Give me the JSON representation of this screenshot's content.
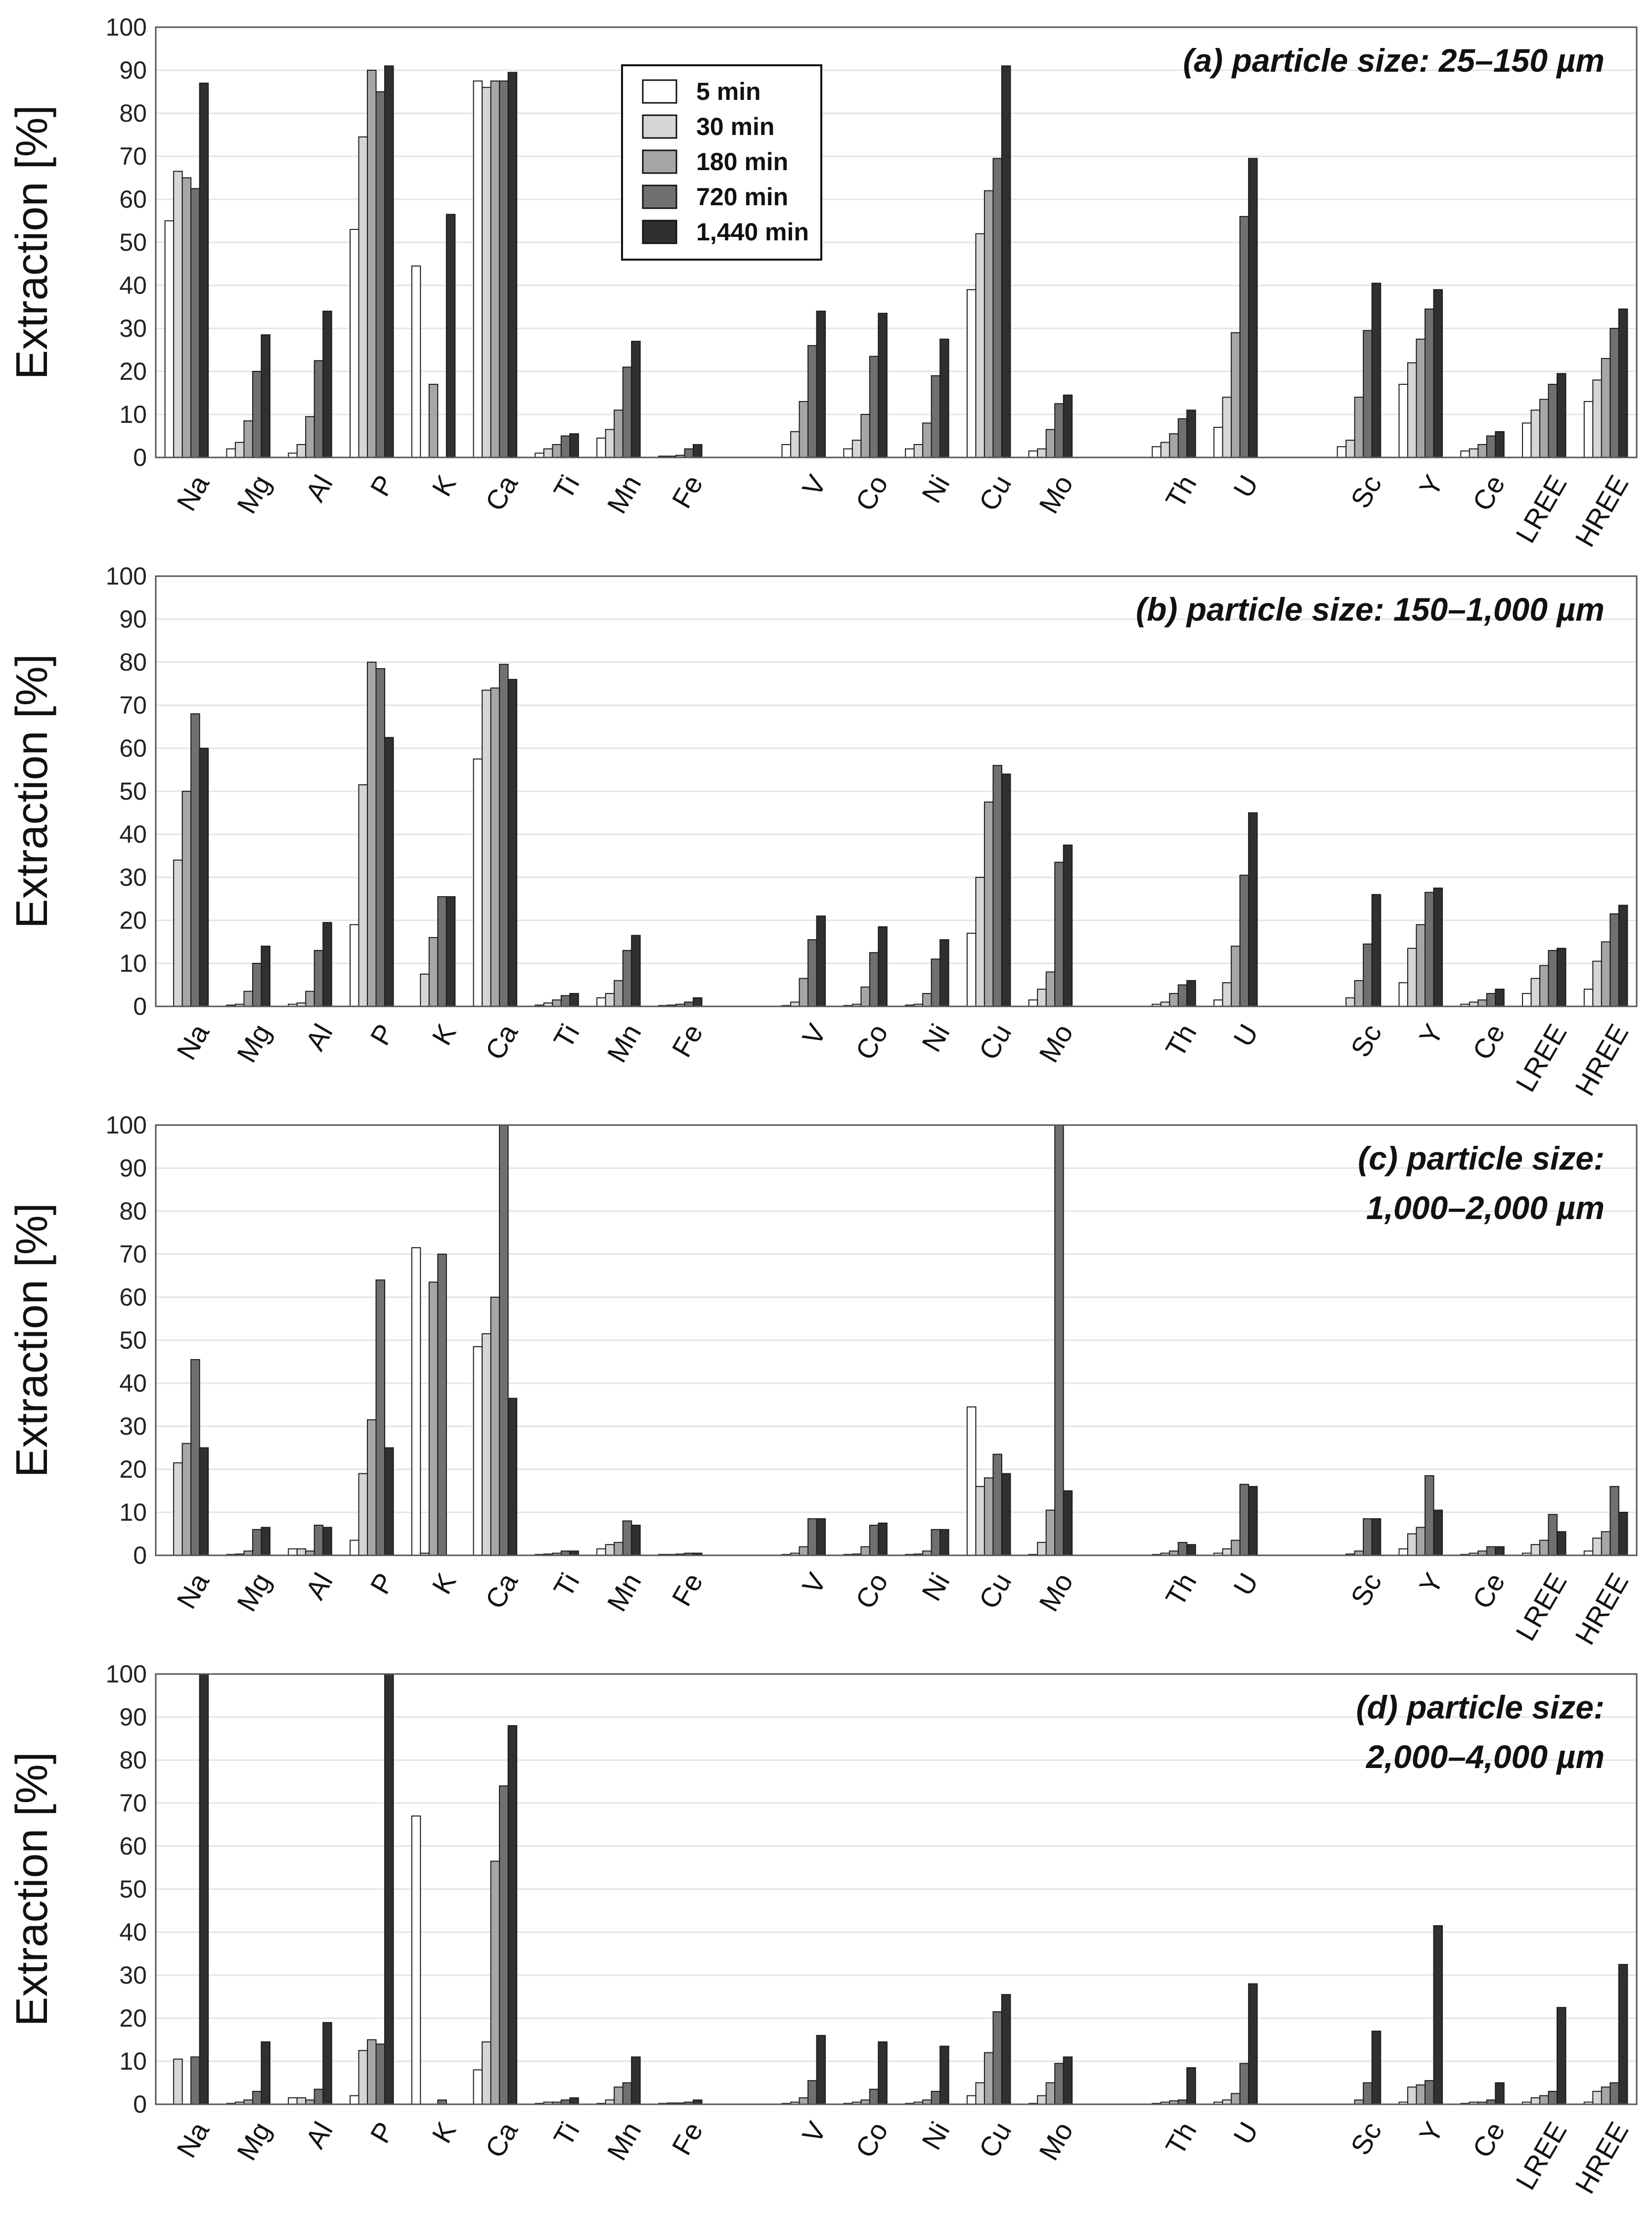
{
  "colors": [
    "#ffffff",
    "#d6d6d6",
    "#a6a6a6",
    "#707070",
    "#303030"
  ],
  "chart_data": {
    "type": "bar",
    "ylabel": "Extraction [%]",
    "ylim": [
      0,
      100
    ],
    "yticks": [
      0,
      10,
      20,
      30,
      40,
      50,
      60,
      70,
      80,
      90,
      100
    ],
    "categories": [
      "Na",
      "Mg",
      "Al",
      "P",
      "K",
      "Ca",
      "Ti",
      "Mn",
      "Fe",
      "",
      "V",
      "Co",
      "Ni",
      "Cu",
      "Mo",
      "",
      "Th",
      "U",
      "",
      "Sc",
      "Y",
      "Ce",
      "LREE",
      "HREE"
    ],
    "legend": [
      "5 min",
      "30 min",
      "180 min",
      "720 min",
      "1,440 min"
    ],
    "panels": [
      {
        "title_lines": [
          "(a) particle size: 25–150 µm"
        ],
        "series": [
          {
            "name": "5 min",
            "values": [
              55,
              2,
              1,
              53,
              44.5,
              87.5,
              1,
              4.5,
              0.3,
              null,
              3,
              2,
              2,
              39,
              1.5,
              null,
              2.5,
              7,
              null,
              2.5,
              17,
              1.5,
              8,
              13
            ]
          },
          {
            "name": "30 min",
            "values": [
              66.5,
              3.5,
              3,
              74.5,
              null,
              86,
              2,
              6.5,
              0.3,
              null,
              6,
              4,
              3,
              52,
              2,
              null,
              3.5,
              14,
              null,
              4,
              22,
              2,
              11,
              18
            ]
          },
          {
            "name": "180 min",
            "values": [
              65,
              8.5,
              9.5,
              90,
              17,
              87.5,
              3,
              11,
              0.5,
              null,
              13,
              10,
              8,
              62,
              6.5,
              null,
              5.5,
              29,
              null,
              14,
              27.5,
              3,
              13.5,
              23
            ]
          },
          {
            "name": "720 min",
            "values": [
              62.5,
              20,
              22.5,
              85,
              null,
              87.5,
              5,
              21,
              2,
              null,
              26,
              23.5,
              19,
              69.5,
              12.5,
              null,
              9,
              56,
              null,
              29.5,
              34.5,
              5,
              17,
              30
            ]
          },
          {
            "name": "1,440 min",
            "values": [
              87,
              28.5,
              34,
              91,
              56.5,
              89.5,
              5.5,
              27,
              3,
              null,
              34,
              33.5,
              27.5,
              91,
              14.5,
              null,
              11,
              69.5,
              null,
              40.5,
              39,
              6,
              19.5,
              34.5
            ]
          }
        ]
      },
      {
        "title_lines": [
          "(b) particle size: 150–1,000 µm"
        ],
        "series": [
          {
            "name": "5 min",
            "values": [
              null,
              0.3,
              0.5,
              19,
              null,
              57.5,
              0.3,
              2,
              0.2,
              null,
              0.2,
              0.2,
              0.3,
              17,
              1.5,
              null,
              0.5,
              1.5,
              null,
              null,
              5.5,
              0.5,
              3,
              4
            ]
          },
          {
            "name": "30 min",
            "values": [
              34,
              0.5,
              0.8,
              51.5,
              7.5,
              73.5,
              0.8,
              3,
              0.3,
              null,
              1,
              0.5,
              0.5,
              30,
              4,
              null,
              1,
              5.5,
              null,
              2,
              13.5,
              1,
              6.5,
              10.5
            ]
          },
          {
            "name": "180 min",
            "values": [
              50,
              3.5,
              3.5,
              80,
              16,
              74,
              1.5,
              6,
              0.5,
              null,
              6.5,
              4.5,
              3,
              47.5,
              8,
              null,
              3,
              14,
              null,
              6,
              19,
              1.5,
              9.5,
              15
            ]
          },
          {
            "name": "720 min",
            "values": [
              68,
              10,
              13,
              78.5,
              25.5,
              79.5,
              2.5,
              13,
              1,
              null,
              15.5,
              12.5,
              11,
              56,
              33.5,
              null,
              5,
              30.5,
              null,
              14.5,
              26.5,
              3,
              13,
              21.5
            ]
          },
          {
            "name": "1,440 min",
            "values": [
              60,
              14,
              19.5,
              62.5,
              25.5,
              76,
              3,
              16.5,
              2,
              null,
              21,
              18.5,
              15.5,
              54,
              37.5,
              null,
              6,
              45,
              null,
              26,
              27.5,
              4,
              13.5,
              23.5
            ]
          }
        ]
      },
      {
        "title_lines": [
          "(c) particle size:",
          "1,000–2,000 µm"
        ],
        "series": [
          {
            "name": "5 min",
            "values": [
              null,
              0.2,
              1.5,
              3.5,
              71.5,
              48.5,
              0.2,
              1.5,
              0.2,
              null,
              0.2,
              0.2,
              0.2,
              34.5,
              0.2,
              null,
              0.2,
              0.5,
              null,
              null,
              1.5,
              0.2,
              0.5,
              1
            ]
          },
          {
            "name": "30 min",
            "values": [
              21.5,
              0.3,
              1.5,
              19,
              0.5,
              51.5,
              0.3,
              2.5,
              0.2,
              null,
              0.5,
              0.3,
              0.3,
              16,
              3,
              null,
              0.5,
              1.5,
              null,
              0.3,
              5,
              0.5,
              2.5,
              4
            ]
          },
          {
            "name": "180 min",
            "values": [
              26,
              1,
              1,
              31.5,
              63.5,
              60,
              0.5,
              3,
              0.3,
              null,
              2,
              2,
              1,
              18,
              10.5,
              null,
              1,
              3.5,
              null,
              1,
              6.5,
              1,
              3.5,
              5.5
            ]
          },
          {
            "name": "720 min",
            "values": [
              45.5,
              6,
              7,
              64,
              70,
              100,
              1,
              8,
              0.5,
              null,
              8.5,
              7,
              6,
              23.5,
              100,
              null,
              3,
              16.5,
              null,
              8.5,
              18.5,
              2,
              9.5,
              16
            ]
          },
          {
            "name": "1,440 min",
            "values": [
              25,
              6.5,
              6.5,
              25,
              null,
              36.5,
              1,
              7,
              0.5,
              null,
              8.5,
              7.5,
              6,
              19,
              15,
              null,
              2.5,
              16,
              null,
              8.5,
              10.5,
              2,
              5.5,
              10
            ]
          }
        ]
      },
      {
        "title_lines": [
          "(d) particle size:",
          "2,000–4,000 µm"
        ],
        "series": [
          {
            "name": "5 min",
            "values": [
              null,
              0.2,
              1.5,
              2,
              67,
              8,
              0.2,
              0.2,
              0.2,
              null,
              0.2,
              0.2,
              0.2,
              2,
              0.2,
              null,
              0.2,
              0.5,
              null,
              null,
              0.5,
              0.2,
              0.5,
              0.5
            ]
          },
          {
            "name": "30 min",
            "values": [
              10.5,
              0.5,
              1.5,
              12.5,
              null,
              14.5,
              0.5,
              1,
              0.3,
              null,
              0.5,
              0.5,
              0.5,
              5,
              2,
              null,
              0.5,
              1,
              null,
              null,
              4,
              0.5,
              1.5,
              3
            ]
          },
          {
            "name": "180 min",
            "values": [
              null,
              1,
              1,
              15,
              null,
              56.5,
              0.5,
              4,
              0.3,
              null,
              1.5,
              1,
              1,
              12,
              5,
              null,
              0.8,
              2.5,
              null,
              1,
              4.5,
              0.5,
              2,
              4
            ]
          },
          {
            "name": "720 min",
            "values": [
              11,
              3,
              3.5,
              14,
              1,
              74,
              1,
              5,
              0.5,
              null,
              5.5,
              3.5,
              3,
              21.5,
              9.5,
              null,
              1,
              9.5,
              null,
              5,
              5.5,
              1,
              3,
              5
            ]
          },
          {
            "name": "1,440 min",
            "values": [
              100,
              14.5,
              19,
              100,
              null,
              88,
              1.5,
              11,
              1,
              null,
              16,
              14.5,
              13.5,
              25.5,
              11,
              null,
              8.5,
              28,
              null,
              17,
              41.5,
              5,
              22.5,
              32.5
            ]
          }
        ]
      }
    ]
  }
}
